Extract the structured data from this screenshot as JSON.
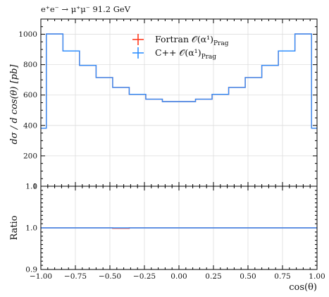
{
  "chart_data": [
    {
      "type": "line",
      "panel": "main",
      "title": "e⁺e⁻ → μ⁺μ⁻ 91.2 GeV",
      "ylabel": "dσ / d cos(θ) [pb]",
      "xlim": [
        -1.0,
        1.0
      ],
      "ylim": [
        0,
        1100
      ],
      "yticks": [
        0,
        200,
        400,
        600,
        800,
        1000
      ],
      "ytick_labels": [
        "0",
        "200",
        "400",
        "600",
        "800",
        "1000"
      ],
      "bin_edges": [
        -1.0,
        -0.96,
        -0.84,
        -0.72,
        -0.6,
        -0.48,
        -0.36,
        -0.24,
        -0.12,
        0.0,
        0.12,
        0.24,
        0.36,
        0.48,
        0.6,
        0.72,
        0.84,
        0.96,
        1.0
      ],
      "legend_position": "top-center",
      "series": [
        {
          "name": "Fortran 𝒪(α¹)",
          "name_subscript": "Prag",
          "color": "#ff3b1f",
          "values": [
            382,
            1002,
            890,
            795,
            715,
            650,
            605,
            573,
            557,
            557,
            573,
            605,
            650,
            715,
            795,
            890,
            1002,
            382
          ]
        },
        {
          "name": "C++ 𝒪(α¹)",
          "name_subscript": "Prag",
          "color": "#2f8fff",
          "values": [
            382,
            1002,
            890,
            795,
            715,
            650,
            605,
            573,
            557,
            557,
            573,
            605,
            650,
            715,
            795,
            890,
            1002,
            382
          ]
        }
      ]
    },
    {
      "type": "line",
      "panel": "ratio",
      "ylabel": "Ratio",
      "xlabel": "cos(θ)",
      "xlim": [
        -1.0,
        1.0
      ],
      "ylim": [
        0.9,
        1.1
      ],
      "yticks": [
        0.9,
        1.0,
        1.1
      ],
      "ytick_labels": [
        "0.9",
        "1.0",
        "1.1"
      ],
      "xticks": [
        -1.0,
        -0.75,
        -0.5,
        -0.25,
        0.0,
        0.25,
        0.5,
        0.75,
        1.0
      ],
      "xtick_labels": [
        "−1.00",
        "−0.75",
        "−0.50",
        "−0.25",
        "0.00",
        "0.25",
        "0.50",
        "0.75",
        "1.00"
      ],
      "reference_color": "#ff3b1f",
      "ratio_color": "#2f8fff",
      "bin_edges": [
        -1.0,
        -0.96,
        -0.84,
        -0.72,
        -0.6,
        -0.48,
        -0.36,
        -0.24,
        -0.12,
        0.0,
        0.12,
        0.24,
        0.36,
        0.48,
        0.6,
        0.72,
        0.84,
        0.96,
        1.0
      ],
      "ratio_values": [
        1.0,
        1.0,
        1.0,
        1.0,
        1.0,
        1.0,
        1.0,
        1.0,
        1.0,
        1.0,
        1.0,
        1.0,
        1.0,
        1.0,
        1.0,
        1.0,
        1.0,
        1.0
      ],
      "reference_values": [
        1.0,
        1.0,
        1.0,
        1.0,
        1.0,
        0.999,
        1.0,
        1.0,
        1.0,
        1.0,
        1.0,
        1.0,
        1.0,
        1.0,
        1.0,
        1.0,
        1.0,
        1.0
      ]
    }
  ]
}
